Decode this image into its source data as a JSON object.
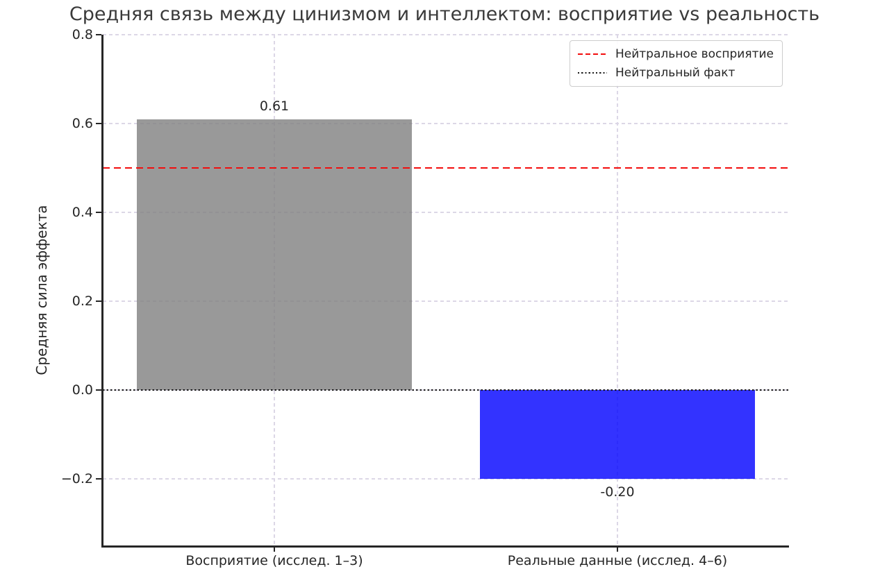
{
  "title": "Средняя связь между цинизмом и интеллектом: восприятие vs реальность",
  "chart_data": {
    "type": "bar",
    "title": "Средняя связь между цинизмом и интеллектом: восприятие vs реальность",
    "categories": [
      "Восприятие (исслед. 1–3)",
      "Реальные данные (исслед. 4–6)"
    ],
    "values": [
      0.61,
      -0.2
    ],
    "bar_labels": [
      "0.61",
      "-0.20"
    ],
    "bar_colors": [
      "#808080cc",
      "#0000ffcc"
    ],
    "xlabel": "",
    "ylabel": "Средняя сила эффекта",
    "ylim": [
      -0.35,
      0.8
    ],
    "yticks": [
      0.8,
      0.6,
      0.4,
      0.2,
      0.0,
      -0.2
    ],
    "ytick_labels": [
      "0.8",
      "0.6",
      "0.4",
      "0.2",
      "0.0",
      "−0.2"
    ],
    "grid": true,
    "grid_color": "#dcd7e6",
    "reference_lines": [
      {
        "value": 0.5,
        "style": "dashed",
        "color": "#f20d0d",
        "label": "Нейтральное восприятие"
      },
      {
        "value": 0.0,
        "style": "dotted",
        "color": "#1a1a1a",
        "label": "Нейтральный факт"
      }
    ],
    "legend_position": "upper right"
  },
  "legend": {
    "items": [
      {
        "label": "Нейтральное восприятие",
        "line": "dashed",
        "color": "#f20d0d"
      },
      {
        "label": "Нейтральный факт",
        "line": "dotted",
        "color": "#1a1a1a"
      }
    ]
  }
}
